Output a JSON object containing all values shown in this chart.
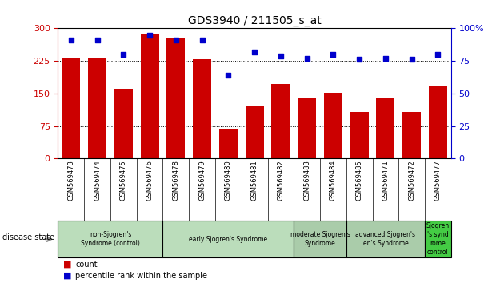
{
  "title": "GDS3940 / 211505_s_at",
  "samples": [
    "GSM569473",
    "GSM569474",
    "GSM569475",
    "GSM569476",
    "GSM569478",
    "GSM569479",
    "GSM569480",
    "GSM569481",
    "GSM569482",
    "GSM569483",
    "GSM569484",
    "GSM569485",
    "GSM569471",
    "GSM569472",
    "GSM569477"
  ],
  "counts": [
    232,
    232,
    160,
    287,
    278,
    228,
    68,
    120,
    172,
    138,
    152,
    108,
    138,
    108,
    168
  ],
  "percentiles": [
    91,
    91,
    80,
    95,
    91,
    91,
    64,
    82,
    79,
    77,
    80,
    76,
    77,
    76,
    80
  ],
  "bar_color": "#cc0000",
  "dot_color": "#0000cc",
  "ylim_left": [
    0,
    300
  ],
  "ylim_right": [
    0,
    100
  ],
  "yticks_left": [
    0,
    75,
    150,
    225,
    300
  ],
  "yticks_right": [
    0,
    25,
    50,
    75,
    100
  ],
  "grid_values": [
    75,
    150,
    225
  ],
  "group_data": [
    {
      "start": 0,
      "end": 4,
      "label": "non-Sjogren's\nSyndrome (control)",
      "color": "#aaddaa"
    },
    {
      "start": 4,
      "end": 9,
      "label": "early Sjogren's Syndrome",
      "color": "#aaddaa"
    },
    {
      "start": 9,
      "end": 11,
      "label": "moderate Sjogren's\nSyndrome",
      "color": "#aaddaa"
    },
    {
      "start": 11,
      "end": 14,
      "label": "advanced Sjogren's\nen's Syndrome",
      "color": "#aaddaa"
    },
    {
      "start": 14,
      "end": 15,
      "label": "Sjogren\n's synd\nrome\ncontrol",
      "color": "#44bb44"
    }
  ],
  "legend_count_color": "#cc0000",
  "legend_pct_color": "#0000cc",
  "bg_color": "#ffffff",
  "tick_area_bg": "#bbbbbb",
  "group_bg": "#aaddaa",
  "group_last_bg": "#44bb44"
}
